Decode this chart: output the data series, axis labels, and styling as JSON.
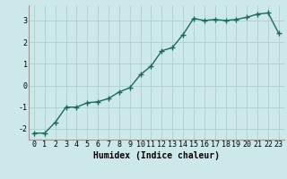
{
  "x": [
    0,
    1,
    2,
    3,
    4,
    5,
    6,
    7,
    8,
    9,
    10,
    11,
    12,
    13,
    14,
    15,
    16,
    17,
    18,
    19,
    20,
    21,
    22,
    23
  ],
  "y": [
    -2.2,
    -2.2,
    -1.7,
    -1.0,
    -1.0,
    -0.8,
    -0.75,
    -0.6,
    -0.3,
    -0.1,
    0.5,
    0.9,
    1.6,
    1.75,
    2.35,
    3.1,
    3.0,
    3.05,
    3.0,
    3.05,
    3.15,
    3.3,
    3.35,
    2.4
  ],
  "xlabel": "Humidex (Indice chaleur)",
  "xlim": [
    -0.5,
    23.5
  ],
  "ylim": [
    -2.5,
    3.7
  ],
  "yticks": [
    -2,
    -1,
    0,
    1,
    2,
    3
  ],
  "xticks": [
    0,
    1,
    2,
    3,
    4,
    5,
    6,
    7,
    8,
    9,
    10,
    11,
    12,
    13,
    14,
    15,
    16,
    17,
    18,
    19,
    20,
    21,
    22,
    23
  ],
  "line_color": "#1a6b5a",
  "marker": "+",
  "marker_size": 4,
  "bg_color": "#cce8e8",
  "grid_color": "#aed0d0",
  "tick_label_fontsize": 6,
  "xlabel_fontsize": 7,
  "line_width": 1.0
}
